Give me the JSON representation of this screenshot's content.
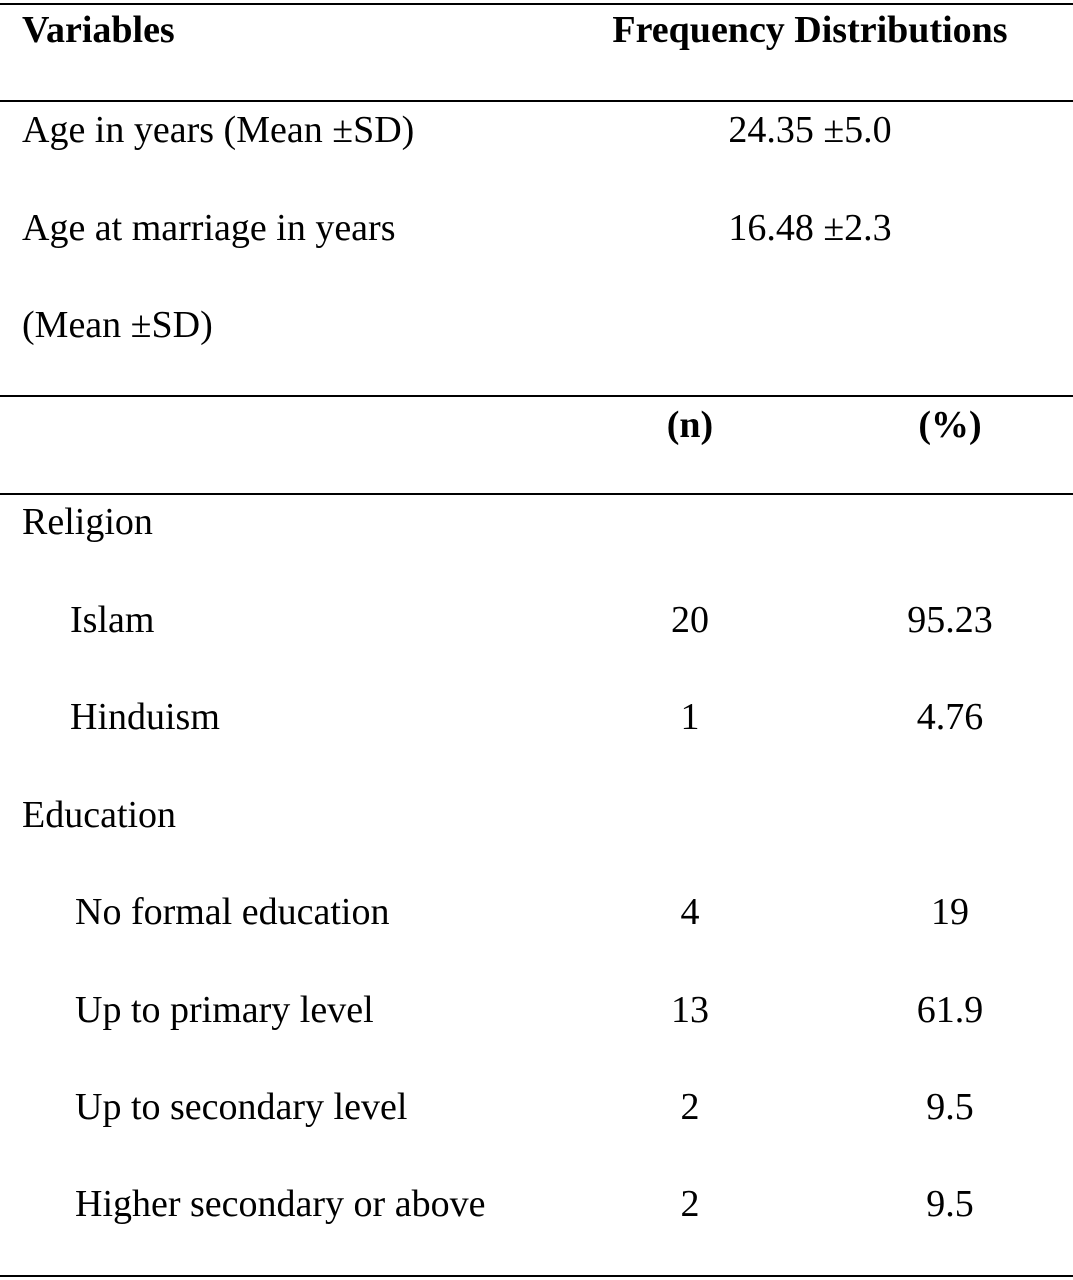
{
  "header": {
    "variables": "Variables",
    "frequency": "Frequency Distributions"
  },
  "continuous": [
    {
      "label_lines": [
        "Age in years (Mean ±SD)"
      ],
      "value": "24.35 ±5.0"
    },
    {
      "label_lines": [
        "Age at marriage in years",
        "(Mean ±SD)"
      ],
      "value": "16.48 ±2.3"
    }
  ],
  "subheader": {
    "n": "(n)",
    "percent": "(%)"
  },
  "groups": [
    {
      "label": "Religion",
      "rows": [
        {
          "label": "Islam",
          "n": 20,
          "percent": 95.23
        },
        {
          "label": "Hinduism",
          "n": 1,
          "percent": 4.76
        }
      ]
    },
    {
      "label": "Education",
      "rows": [
        {
          "label": "No formal education",
          "n": 4,
          "percent": 19
        },
        {
          "label": "Up to primary level",
          "n": 13,
          "percent": 61.9
        },
        {
          "label": "Up to secondary level",
          "n": 2,
          "percent": 9.5
        },
        {
          "label": "Higher secondary or above",
          "n": 2,
          "percent": 9.5
        }
      ]
    }
  ]
}
